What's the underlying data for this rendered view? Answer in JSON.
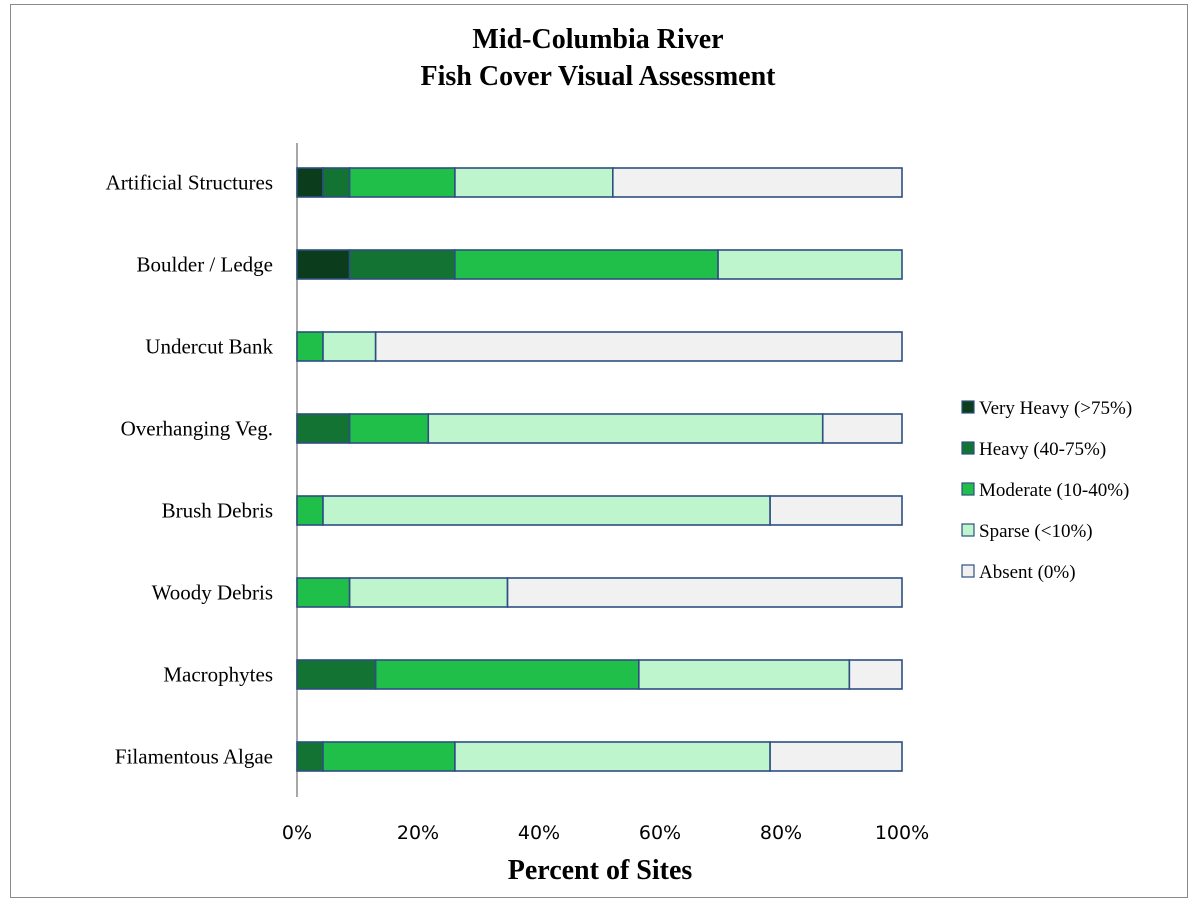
{
  "chart_data": {
    "type": "bar",
    "orientation": "horizontal",
    "stacked": "percent",
    "title": "Mid-Columbia River\nFish Cover Visual Assessment",
    "xlabel": "Percent of Sites",
    "ylabel": "",
    "xlim": [
      0,
      100
    ],
    "x_ticks": [
      "0%",
      "20%",
      "40%",
      "60%",
      "80%",
      "100%"
    ],
    "categories": [
      "Artificial Structures",
      "Boulder / Ledge",
      "Undercut Bank",
      "Overhanging Veg.",
      "Brush Debris",
      "Woody Debris",
      "Macrophytes",
      "Filamentous Algae"
    ],
    "series": [
      {
        "name": "Very Heavy (>75%)",
        "color": "#0b3d1c",
        "values": [
          4.3,
          8.7,
          0,
          0,
          0,
          0,
          0,
          0
        ]
      },
      {
        "name": "Heavy (40-75%)",
        "color": "#137333",
        "values": [
          4.4,
          17.4,
          0,
          8.7,
          0,
          0,
          13.0,
          4.3
        ]
      },
      {
        "name": "Moderate (10-40%)",
        "color": "#1fbf4a",
        "values": [
          17.4,
          43.5,
          4.3,
          13.0,
          4.3,
          8.7,
          43.5,
          21.8
        ]
      },
      {
        "name": "Sparse (<10%)",
        "color": "#bff5cc",
        "values": [
          26.1,
          30.4,
          8.7,
          65.2,
          73.9,
          26.1,
          34.8,
          52.1
        ]
      },
      {
        "name": "Absent (0%)",
        "color": "#f1f1f1",
        "values": [
          47.8,
          0,
          87.0,
          13.1,
          21.8,
          65.2,
          8.7,
          21.8
        ]
      }
    ],
    "bar_outline": "#2e4f82",
    "grid": false,
    "legend_position": "right"
  }
}
